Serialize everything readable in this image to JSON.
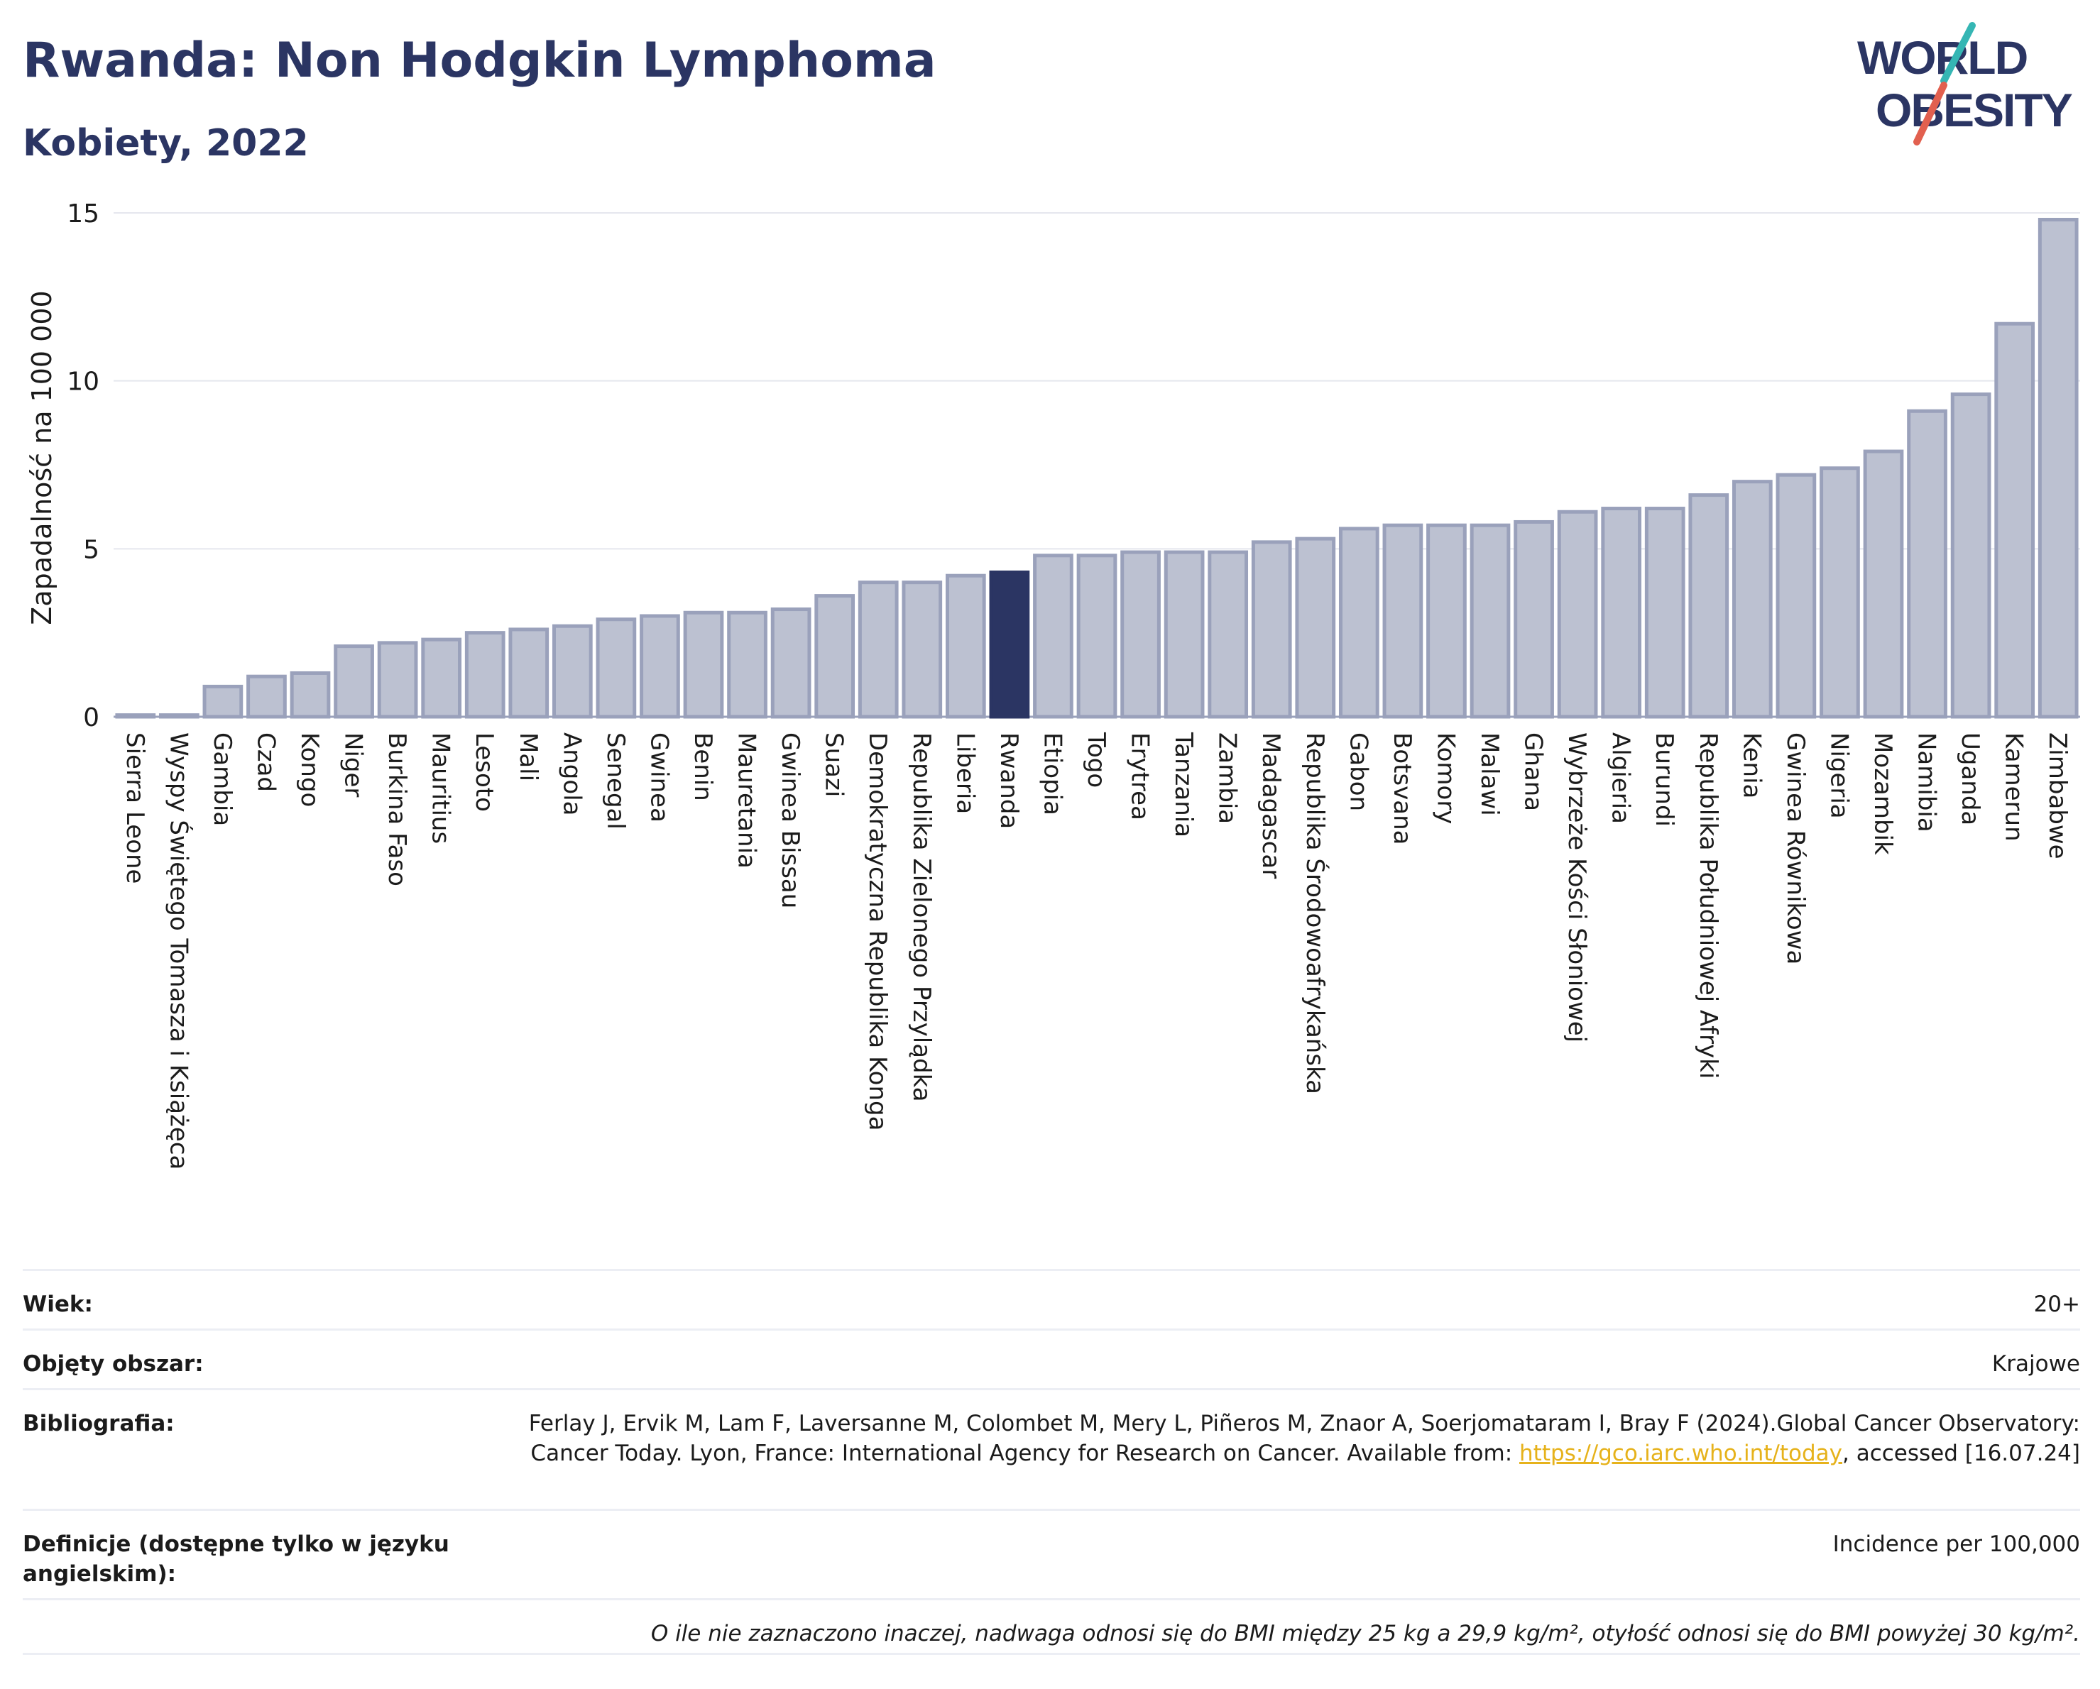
{
  "header": {
    "title": "Rwanda: Non Hodgkin Lymphoma",
    "subtitle": "Kobiety, 2022"
  },
  "logo": {
    "line1": "WORLD",
    "line2": "OBESITY"
  },
  "colors": {
    "bar": "#bcc1d1",
    "bar_stroke": "#9aa1bb",
    "highlight": "#2b3563",
    "grid": "#e5e7ee",
    "text": "#1b1b1b"
  },
  "chart_data": {
    "type": "bar",
    "ylabel": "Zapadalność na 100 000",
    "ylim": [
      0,
      15
    ],
    "yticks": [
      0,
      5,
      10,
      15
    ],
    "grid": true,
    "highlight": "Rwanda",
    "categories": [
      "Sierra Leone",
      "Wyspy Świętego Tomasza i Książęca",
      "Gambia",
      "Czad",
      "Kongo",
      "Niger",
      "Burkina Faso",
      "Mauritius",
      "Lesoto",
      "Mali",
      "Angola",
      "Senegal",
      "Gwinea",
      "Benin",
      "Mauretania",
      "Gwinea Bissau",
      "Suazi",
      "Demokratyczna Republika Konga",
      "Republika Zielonego Przylądka",
      "Liberia",
      "Rwanda",
      "Etiopia",
      "Togo",
      "Erytrea",
      "Tanzania",
      "Zambia",
      "Madagascar",
      "Republika Środowoafrykańska",
      "Gabon",
      "Botsvana",
      "Komory",
      "Malawi",
      "Ghana",
      "Wybrzeże Kości Słoniowej",
      "Algieria",
      "Burundi",
      "Republika Południowej Afryki",
      "Kenia",
      "Gwinea Równikowa",
      "Nigeria",
      "Mozambik",
      "Namibia",
      "Uganda",
      "Kamerun",
      "Zimbabwe"
    ],
    "values": [
      0.05,
      0.05,
      0.9,
      1.2,
      1.3,
      2.1,
      2.2,
      2.3,
      2.5,
      2.6,
      2.7,
      2.9,
      3.0,
      3.1,
      3.1,
      3.2,
      3.6,
      4.0,
      4.0,
      4.2,
      4.3,
      4.8,
      4.8,
      4.9,
      4.9,
      4.9,
      5.2,
      5.3,
      5.6,
      5.7,
      5.7,
      5.7,
      5.8,
      6.1,
      6.2,
      6.2,
      6.6,
      7.0,
      7.2,
      7.4,
      7.9,
      9.1,
      9.6,
      11.7,
      14.8
    ]
  },
  "info": {
    "age_label": "Wiek:",
    "age_value": "20+",
    "area_label": "Objęty obszar:",
    "area_value": "Krajowe",
    "bib_label": "Bibliografia:",
    "bib_text_1": "Ferlay J, Ervik M, Lam F, Laversanne M, Colombet M, Mery L, Piñeros M, Znaor A, Soerjomataram I, Bray F (2024).Global Cancer Observatory: Cancer Today. Lyon, France: International Agency for Research on Cancer. Available from: ",
    "bib_link": "https://gco.iarc.who.int/today",
    "bib_text_2": ", accessed [16.07.24]",
    "def_label": "Definicje (dostępne tylko w języku angielskim):",
    "def_value": "Incidence per 100,000",
    "note": "O ile nie zaznaczono inaczej, nadwaga odnosi się do BMI między 25 kg a 29,9 kg/m², otyłość odnosi się do BMI powyżej 30 kg/m²."
  }
}
